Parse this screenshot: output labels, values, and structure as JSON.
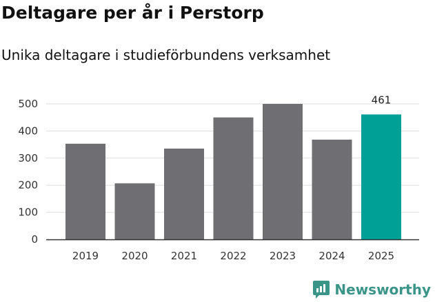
{
  "title": "Deltagare per år i Perstorp",
  "subtitle": "Unika deltagare i studieförbundens verksamhet",
  "brand": {
    "name": "Newsworthy",
    "icon": "newsworthy-logo-icon"
  },
  "colors": {
    "bar_default": "#6f6e73",
    "bar_highlight": "#00a096",
    "brand": "#3a9488",
    "grid": "#dddddd"
  },
  "chart_data": {
    "type": "bar",
    "categories": [
      "2019",
      "2020",
      "2021",
      "2022",
      "2023",
      "2024",
      "2025"
    ],
    "values": [
      353,
      207,
      335,
      450,
      500,
      368,
      461
    ],
    "highlight_index": 6,
    "data_labels": [
      {
        "index": 6,
        "text": "461"
      }
    ],
    "yticks": [
      "0",
      "100",
      "200",
      "300",
      "400",
      "500"
    ],
    "ylim": [
      0,
      500
    ],
    "grid": "horizontal",
    "legend": "none"
  }
}
